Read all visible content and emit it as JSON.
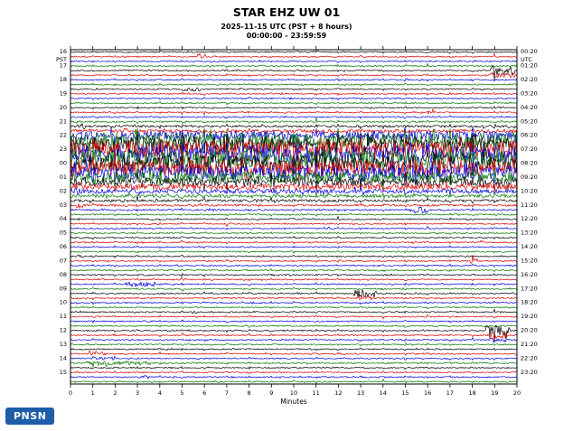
{
  "header": {
    "title": "STAR EHZ UW 01",
    "date_line": "2025-11-15 UTC (PST + 8 hours)",
    "time_range": "00:00:00 - 23:59:59"
  },
  "footer": {
    "logo_text": "PNSN",
    "logo_color": "#1d5da9"
  },
  "chart_data": {
    "type": "line",
    "chart_kind": "helicorder-webicorder",
    "title": "STAR EHZ UW 01",
    "xlabel": "Minutes",
    "x_range": [
      0,
      20
    ],
    "x_ticks": [
      0,
      1,
      2,
      3,
      4,
      5,
      6,
      7,
      8,
      9,
      10,
      11,
      12,
      13,
      14,
      15,
      16,
      17,
      18,
      19,
      20
    ],
    "minutes_per_line": 20,
    "lines_per_hour": 3,
    "left_axis": {
      "unit": "PST",
      "labels": [
        "16",
        "17",
        "18",
        "19",
        "20",
        "21",
        "22",
        "23",
        "00",
        "01",
        "02",
        "03",
        "04",
        "05",
        "06",
        "07",
        "08",
        "09",
        "10",
        "11",
        "12",
        "13",
        "14",
        "15"
      ]
    },
    "right_axis": {
      "unit": "UTC",
      "labels": [
        "00:20",
        "01:20",
        "02:20",
        "03:20",
        "04:20",
        "05:20",
        "06:20",
        "07:20",
        "08:20",
        "09:20",
        "10:20",
        "11:20",
        "12:20",
        "13:20",
        "14:20",
        "15:20",
        "16:20",
        "17:20",
        "18:20",
        "19:20",
        "20:20",
        "21:20",
        "22:20",
        "23:20"
      ]
    },
    "trace_colors": [
      "#000000",
      "#dd0000",
      "#0000dd",
      "#007700"
    ],
    "row_base_amplitude": [
      0.7,
      0.7,
      0.7,
      0.7,
      0.7,
      0.7,
      0.7,
      0.7,
      0.7,
      0.7,
      0.7,
      0.7,
      0.7,
      0.7,
      0.8,
      0.9,
      1.3,
      1.8,
      5,
      8,
      9,
      9.5,
      9.5,
      9.5,
      9,
      8.5,
      7.5,
      6,
      4.5,
      3.2,
      2.4,
      1.8,
      1.4,
      1.1,
      0.9,
      0.8,
      0.7,
      0.7,
      0.7,
      0.7,
      0.7,
      0.7,
      0.7,
      0.7,
      0.7,
      0.7,
      0.7,
      0.7,
      0.7,
      0.7,
      0.7,
      0.7,
      0.7,
      0.7,
      0.7,
      0.7,
      0.7,
      0.7,
      0.7,
      0.7,
      0.7,
      0.7,
      0.7,
      0.7,
      0.7,
      0.7,
      0.7,
      0.7,
      0.7,
      0.7,
      0.7,
      0.7
    ],
    "events": [
      {
        "row": 1,
        "start_min": 5.7,
        "end_min": 6.05,
        "amplitude": 3.5
      },
      {
        "row": 4,
        "start_min": 18.8,
        "end_min": 19.9,
        "amplitude": 6
      },
      {
        "row": 5,
        "start_min": 18.8,
        "end_min": 19.9,
        "amplitude": 3
      },
      {
        "row": 8,
        "start_min": 5.0,
        "end_min": 5.8,
        "amplitude": 2.5
      },
      {
        "row": 13,
        "start_min": 16.0,
        "end_min": 16.35,
        "amplitude": 2
      },
      {
        "row": 16,
        "start_min": 0.3,
        "end_min": 0.7,
        "amplitude": 4
      },
      {
        "row": 29,
        "start_min": 0.2,
        "end_min": 0.5,
        "amplitude": 5
      },
      {
        "row": 30,
        "start_min": 0.2,
        "end_min": 0.5,
        "amplitude": 4
      },
      {
        "row": 33,
        "start_min": 0.25,
        "end_min": 0.55,
        "amplitude": 3
      },
      {
        "row": 34,
        "start_min": 15.2,
        "end_min": 16.0,
        "amplitude": 3.5
      },
      {
        "row": 34,
        "start_min": 6.1,
        "end_min": 6.4,
        "amplitude": 2.5
      },
      {
        "row": 38,
        "start_min": 11.3,
        "end_min": 11.6,
        "amplitude": 2
      },
      {
        "row": 41,
        "start_min": 18.2,
        "end_min": 18.5,
        "amplitude": 2.5
      },
      {
        "row": 44,
        "start_min": 0.3,
        "end_min": 0.6,
        "amplitude": 2
      },
      {
        "row": 45,
        "start_min": 17.9,
        "end_min": 18.25,
        "amplitude": 3
      },
      {
        "row": 50,
        "start_min": 2.4,
        "end_min": 3.8,
        "amplitude": 2.8
      },
      {
        "row": 52,
        "start_min": 12.7,
        "end_min": 13.7,
        "amplitude": 5
      },
      {
        "row": 53,
        "start_min": 12.9,
        "end_min": 13.5,
        "amplitude": 2.5
      },
      {
        "row": 56,
        "start_min": 5.4,
        "end_min": 5.7,
        "amplitude": 2
      },
      {
        "row": 60,
        "start_min": 18.6,
        "end_min": 19.7,
        "amplitude": 6
      },
      {
        "row": 61,
        "start_min": 18.7,
        "end_min": 19.6,
        "amplitude": 3.5
      },
      {
        "row": 62,
        "start_min": 18.8,
        "end_min": 19.5,
        "amplitude": 2.5
      },
      {
        "row": 65,
        "start_min": 0.6,
        "end_min": 1.6,
        "amplitude": 2.2
      },
      {
        "row": 66,
        "start_min": 1.0,
        "end_min": 2.0,
        "amplitude": 1.8
      },
      {
        "row": 67,
        "start_min": 0.7,
        "end_min": 3.6,
        "amplitude": 2.2
      },
      {
        "row": 70,
        "start_min": 3.0,
        "end_min": 3.5,
        "amplitude": 2
      }
    ],
    "grid": {
      "minute_marks": true
    }
  }
}
